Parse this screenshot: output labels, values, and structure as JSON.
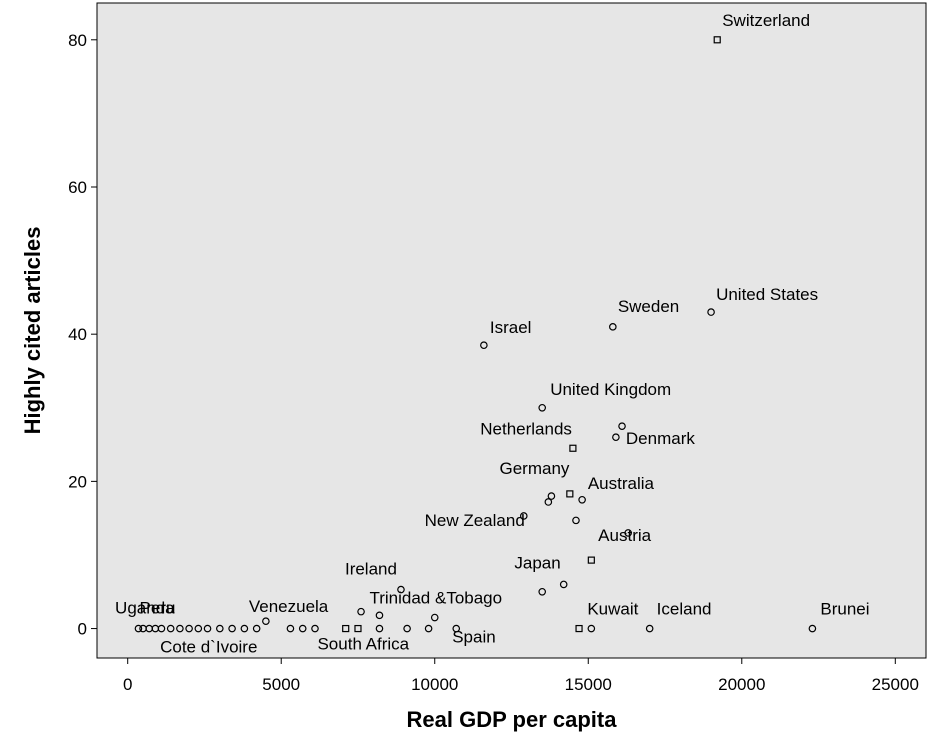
{
  "chart_data": {
    "type": "scatter",
    "title": "",
    "xlabel": "Real GDP per capita",
    "ylabel": "Highly cited articles",
    "xlim": [
      -1000,
      26000
    ],
    "ylim": [
      -4,
      85
    ],
    "xticks": [
      0,
      5000,
      10000,
      15000,
      20000,
      25000
    ],
    "yticks": [
      0,
      20,
      40,
      60,
      80
    ],
    "grid": false,
    "points": [
      {
        "x": 19200,
        "y": 80,
        "label": "Switzerland",
        "marker": "square"
      },
      {
        "x": 19000,
        "y": 43,
        "label": "United States",
        "marker": "circle"
      },
      {
        "x": 15800,
        "y": 41,
        "label": "Sweden",
        "marker": "circle"
      },
      {
        "x": 11600,
        "y": 38.5,
        "label": "Israel",
        "marker": "circle"
      },
      {
        "x": 13500,
        "y": 30,
        "label": "United Kingdom",
        "marker": "circle"
      },
      {
        "x": 16100,
        "y": 27.5,
        "label": "",
        "marker": "circle"
      },
      {
        "x": 15900,
        "y": 26,
        "label": "Denmark",
        "marker": "circle"
      },
      {
        "x": 14500,
        "y": 24.5,
        "label": "Netherlands",
        "marker": "square"
      },
      {
        "x": 14400,
        "y": 18.3,
        "label": "Australia",
        "marker": "square"
      },
      {
        "x": 14800,
        "y": 17.5,
        "label": "",
        "marker": "circle"
      },
      {
        "x": 13800,
        "y": 18,
        "label": "Germany",
        "marker": "circle"
      },
      {
        "x": 13700,
        "y": 17.2,
        "label": "",
        "marker": "circle"
      },
      {
        "x": 12900,
        "y": 15.3,
        "label": "New Zealand",
        "marker": "circle"
      },
      {
        "x": 14600,
        "y": 14.7,
        "label": "",
        "marker": "circle"
      },
      {
        "x": 16300,
        "y": 13,
        "label": "Austria",
        "marker": "circle"
      },
      {
        "x": 15100,
        "y": 9.3,
        "label": "",
        "marker": "square"
      },
      {
        "x": 14200,
        "y": 6,
        "label": "Japan",
        "marker": "circle"
      },
      {
        "x": 13500,
        "y": 5,
        "label": "",
        "marker": "circle"
      },
      {
        "x": 8900,
        "y": 5.3,
        "label": "Ireland",
        "marker": "circle"
      },
      {
        "x": 7600,
        "y": 2.3,
        "label": "",
        "marker": "circle"
      },
      {
        "x": 8200,
        "y": 1.8,
        "label": "Trinidad &Tobago",
        "marker": "circle"
      },
      {
        "x": 10000,
        "y": 1.5,
        "label": "",
        "marker": "circle"
      },
      {
        "x": 22300,
        "y": 0,
        "label": "Brunei",
        "marker": "circle"
      },
      {
        "x": 17000,
        "y": 0,
        "label": "Iceland",
        "marker": "circle"
      },
      {
        "x": 15100,
        "y": 0,
        "label": "Kuwait",
        "marker": "circle"
      },
      {
        "x": 14700,
        "y": 0,
        "label": "",
        "marker": "square"
      },
      {
        "x": 10700,
        "y": 0,
        "label": "Spain",
        "marker": "circle"
      },
      {
        "x": 9800,
        "y": 0,
        "label": "",
        "marker": "circle"
      },
      {
        "x": 9100,
        "y": 0,
        "label": "",
        "marker": "circle"
      },
      {
        "x": 8200,
        "y": 0,
        "label": "South Africa",
        "marker": "circle"
      },
      {
        "x": 7500,
        "y": 0,
        "label": "",
        "marker": "square"
      },
      {
        "x": 7100,
        "y": 0,
        "label": "",
        "marker": "square"
      },
      {
        "x": 6100,
        "y": 0,
        "label": "",
        "marker": "circle"
      },
      {
        "x": 5700,
        "y": 0,
        "label": "",
        "marker": "circle"
      },
      {
        "x": 5300,
        "y": 0,
        "label": "",
        "marker": "circle"
      },
      {
        "x": 4500,
        "y": 1,
        "label": "Venezuela",
        "marker": "circle"
      },
      {
        "x": 4200,
        "y": 0,
        "label": "",
        "marker": "circle"
      },
      {
        "x": 3800,
        "y": 0,
        "label": "",
        "marker": "circle"
      },
      {
        "x": 3400,
        "y": 0,
        "label": "Cote d`Ivoire",
        "marker": "circle"
      },
      {
        "x": 3000,
        "y": 0,
        "label": "",
        "marker": "circle"
      },
      {
        "x": 2600,
        "y": 0,
        "label": "Peru",
        "marker": "circle"
      },
      {
        "x": 2300,
        "y": 0,
        "label": "",
        "marker": "circle"
      },
      {
        "x": 2000,
        "y": 0,
        "label": "",
        "marker": "circle"
      },
      {
        "x": 1700,
        "y": 0,
        "label": "",
        "marker": "circle"
      },
      {
        "x": 1400,
        "y": 0,
        "label": "",
        "marker": "circle"
      },
      {
        "x": 1100,
        "y": 0,
        "label": "",
        "marker": "circle"
      },
      {
        "x": 900,
        "y": 0,
        "label": "",
        "marker": "circle"
      },
      {
        "x": 700,
        "y": 0,
        "label": "",
        "marker": "circle"
      },
      {
        "x": 500,
        "y": 0,
        "label": "Uganda",
        "marker": "circle"
      },
      {
        "x": 350,
        "y": 0,
        "label": "",
        "marker": "circle"
      }
    ]
  }
}
